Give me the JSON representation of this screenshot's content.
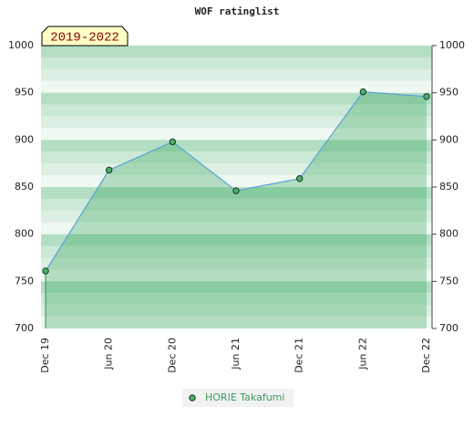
{
  "chart_data": {
    "type": "line",
    "title": "WOF ratinglist",
    "badge": "2019-2022",
    "categories": [
      "Dec 19",
      "Jun 20",
      "Dec 20",
      "Jun 21",
      "Dec 21",
      "Jun 22",
      "Dec 22"
    ],
    "series": [
      {
        "name": "HORIE Takafumi",
        "color": "#5b9fd6",
        "marker_color": "#4caf6a",
        "legend_color": "#3a9a5a",
        "values": [
          761,
          868,
          898,
          846,
          859,
          951,
          946
        ]
      }
    ],
    "ylim": [
      700,
      1000
    ],
    "yticks": [
      700,
      750,
      800,
      850,
      900,
      950,
      1000
    ],
    "y2lim": [
      700,
      1000
    ],
    "y2ticks": [
      700,
      750,
      800,
      850,
      900,
      950,
      1000
    ],
    "grid": true
  }
}
